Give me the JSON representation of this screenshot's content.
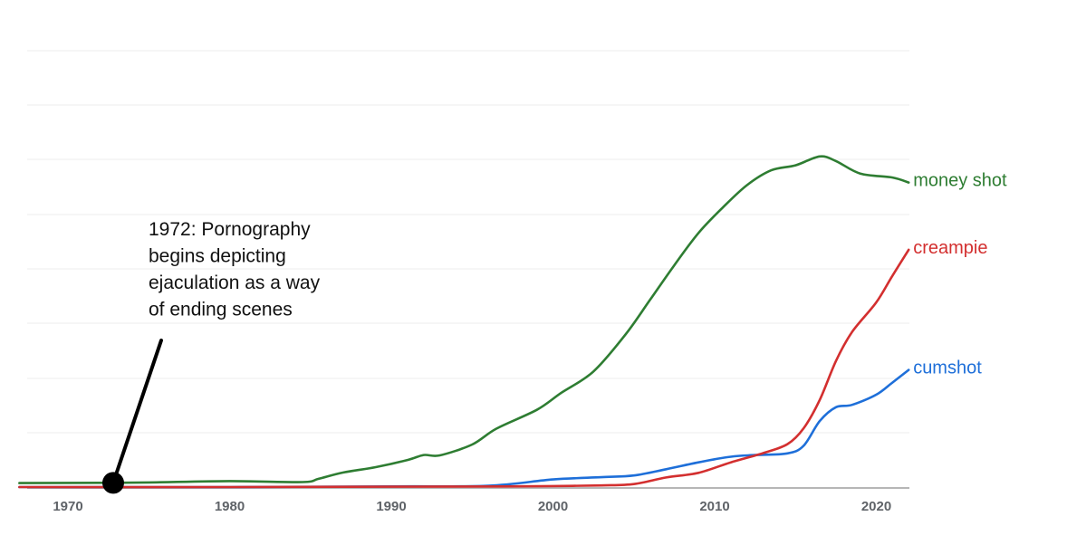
{
  "chart_data": {
    "type": "line",
    "title": "",
    "xlabel": "",
    "ylabel": "",
    "xlim": [
      1967,
      2022
    ],
    "ylim": [
      0,
      100
    ],
    "grid": true,
    "x_ticks": [
      1970,
      1980,
      1990,
      2000,
      2010,
      2020
    ],
    "x_tick_labels": [
      "1970",
      "1980",
      "1990",
      "2000",
      "2010",
      "2020"
    ],
    "legend": "labels at line ends (right)",
    "series": [
      {
        "name": "money shot",
        "color": "#2e7d32",
        "x": [
          1967,
          1972,
          1975,
          1980,
          1984.5,
          1985.5,
          1987,
          1989,
          1991,
          1992,
          1993,
          1995,
          1996.5,
          1999,
          2000.5,
          2002.5,
          2004.5,
          2006,
          2007.5,
          2009,
          2010.5,
          2012,
          2013.5,
          2015,
          2016.5,
          2017.5,
          2019,
          2021,
          2022
        ],
        "y": [
          1.2,
          1.3,
          1.4,
          1.8,
          1.5,
          2.5,
          4.4,
          6.0,
          8.2,
          9.7,
          9.6,
          12.9,
          17.7,
          23.4,
          28.5,
          35.0,
          46.3,
          56.7,
          67.2,
          77.0,
          84.7,
          91.5,
          96.0,
          97.5,
          100.2,
          98.8,
          95.0,
          93.8,
          92.3
        ],
        "end_label": "money shot"
      },
      {
        "name": "creampie",
        "color": "#d32f2f",
        "x": [
          1967,
          1980,
          1990,
          1997,
          2000,
          2003,
          2005,
          2007,
          2009,
          2011,
          2013,
          2014.5,
          2015.5,
          2016.5,
          2017.5,
          2018.5,
          2020,
          2021,
          2022
        ],
        "y": [
          0,
          0,
          0.1,
          0.2,
          0.3,
          0.5,
          0.9,
          2.9,
          4.3,
          7.5,
          10.3,
          13.0,
          17.8,
          26.4,
          38.2,
          47.0,
          56.0,
          64.1,
          71.9
        ],
        "end_label": "creampie"
      },
      {
        "name": "cumshot",
        "color": "#1e6fd9",
        "x": [
          1967,
          1980,
          1990,
          1996,
          2000,
          2003,
          2005,
          2007,
          2009,
          2011,
          2012.5,
          2014.5,
          2015.5,
          2016.5,
          2017.5,
          2018.5,
          2020,
          2021,
          2022
        ],
        "y": [
          0,
          0,
          0.2,
          0.4,
          2.3,
          3.0,
          3.5,
          5.4,
          7.5,
          9.2,
          9.7,
          10.2,
          12.5,
          20.0,
          24.2,
          24.9,
          28.0,
          31.7,
          35.5
        ],
        "end_label": "cumshot"
      }
    ],
    "annotations": [
      {
        "x": 1972.8,
        "y": 1,
        "lines": [
          "1972: Pornography",
          "begins depicting",
          "ejaculation as a way",
          "of ending scenes"
        ]
      }
    ]
  }
}
